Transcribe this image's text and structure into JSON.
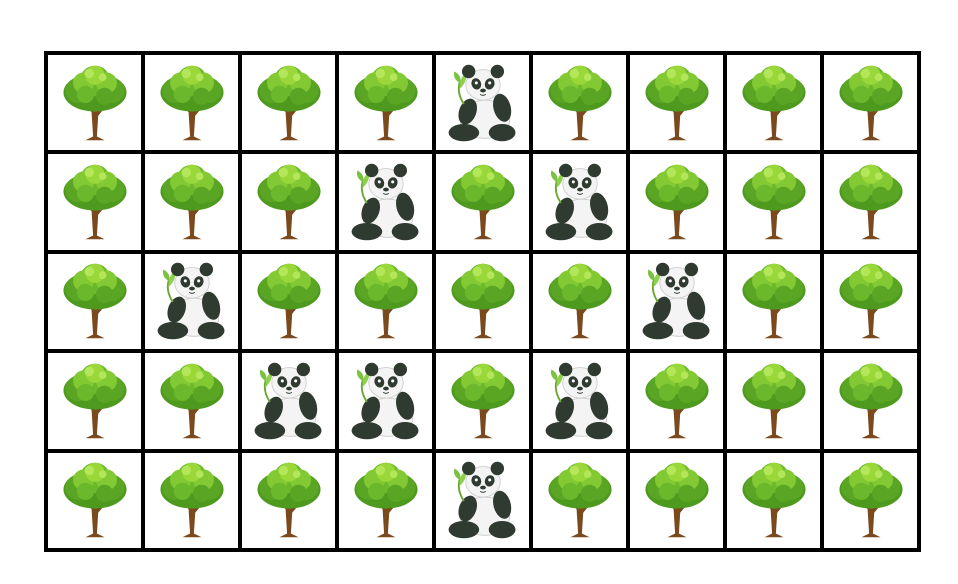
{
  "board": {
    "rows": 5,
    "columns": 9,
    "grid": [
      [
        "tree",
        "tree",
        "tree",
        "tree",
        "panda",
        "tree",
        "tree",
        "tree",
        "tree"
      ],
      [
        "tree",
        "tree",
        "tree",
        "panda",
        "tree",
        "panda",
        "tree",
        "tree",
        "tree"
      ],
      [
        "tree",
        "panda",
        "tree",
        "tree",
        "tree",
        "tree",
        "panda",
        "tree",
        "tree"
      ],
      [
        "tree",
        "tree",
        "panda",
        "panda",
        "tree",
        "panda",
        "tree",
        "tree",
        "tree"
      ],
      [
        "tree",
        "tree",
        "tree",
        "tree",
        "panda",
        "tree",
        "tree",
        "tree",
        "tree"
      ]
    ]
  },
  "icons": {
    "tree": "tree-icon",
    "panda": "panda-icon"
  },
  "colors": {
    "grid_line": "#000000",
    "cell_background": "#ffffff",
    "foliage_dark": "#4e9a1e",
    "foliage_light": "#9ad83a",
    "trunk": "#7a4a1e",
    "panda_black": "#2f3a30",
    "panda_white": "#f4f4f4",
    "bamboo_leaf": "#7cc242"
  }
}
